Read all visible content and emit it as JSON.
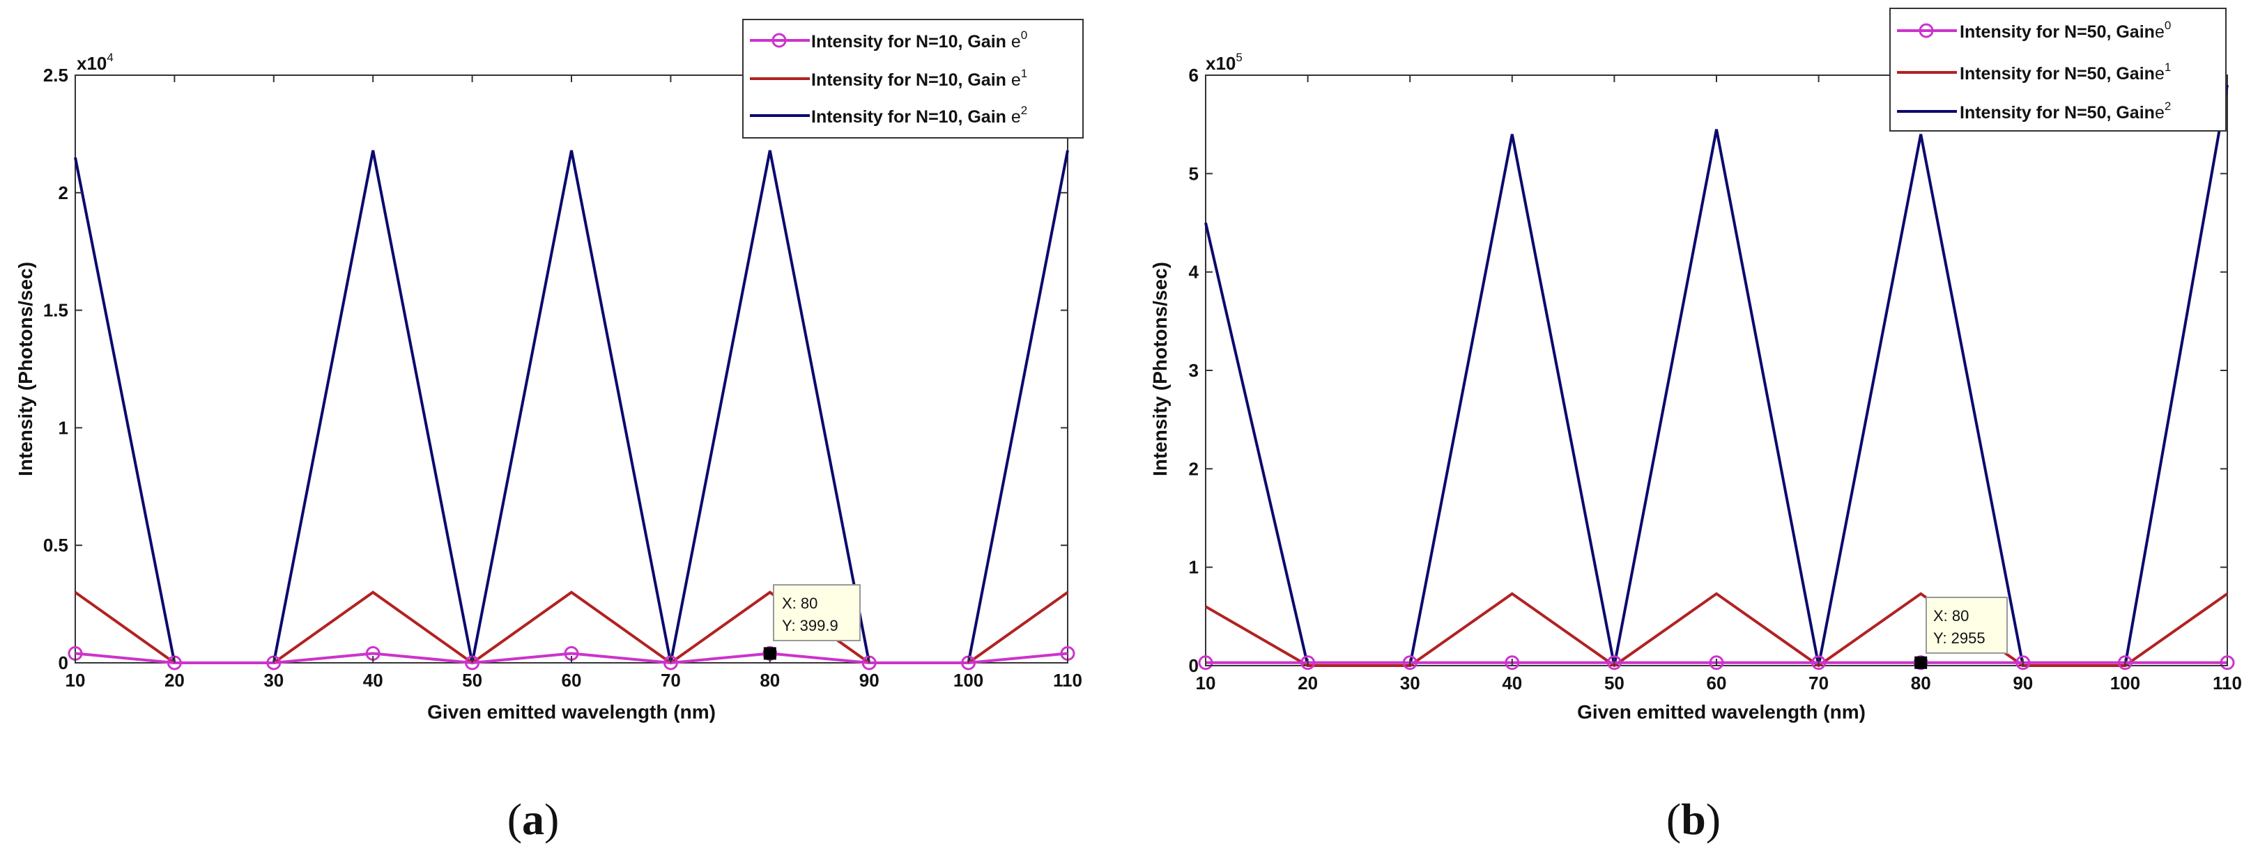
{
  "chart_data": [
    {
      "type": "line",
      "panel_label": "(a)",
      "panel_letter": "a",
      "xlabel": "Given emitted wavelength (nm)",
      "ylabel": "Intensity (Photons/sec)",
      "y_multiplier": "x10",
      "y_exponent": "4",
      "xlim": [
        10,
        110
      ],
      "ylim": [
        0,
        2.5
      ],
      "xticks": [
        "10",
        "20",
        "30",
        "40",
        "50",
        "60",
        "70",
        "80",
        "90",
        "100",
        "110"
      ],
      "yticks": [
        "0",
        "0.5",
        "1",
        "1.5",
        "2",
        "2.5"
      ],
      "x": [
        10,
        20,
        30,
        40,
        50,
        60,
        70,
        80,
        90,
        100,
        110
      ],
      "series": [
        {
          "name_prefix": "Intensity for N=10, Gain ",
          "exponent": "0",
          "color": "#cc33cc",
          "marker": "circle",
          "values": [
            0.04,
            0.0,
            0.0,
            0.04,
            0.0,
            0.04,
            0.0,
            0.04,
            0.0,
            0.0,
            0.04
          ]
        },
        {
          "name_prefix": "Intensity for N=10, Gain ",
          "exponent": "1",
          "color": "#b22222",
          "marker": "none",
          "values": [
            0.3,
            0.0,
            0.0,
            0.3,
            0.0,
            0.3,
            0.0,
            0.3,
            0.0,
            0.0,
            0.3
          ]
        },
        {
          "name_prefix": "Intensity for N=10, Gain ",
          "exponent": "2",
          "color": "#0a0a6e",
          "marker": "none",
          "values": [
            2.15,
            0.0,
            0.0,
            2.18,
            0.0,
            2.18,
            0.0,
            2.18,
            0.0,
            0.0,
            2.18
          ]
        }
      ],
      "datatip": {
        "x_label": "X: 80",
        "y_label": "Y: 399.9",
        "x": 80,
        "y": 0.04
      }
    },
    {
      "type": "line",
      "panel_label": "(b)",
      "panel_letter": "b",
      "xlabel": "Given emitted wavelength (nm)",
      "ylabel": "Intensity (Photons/sec)",
      "y_multiplier": "x10",
      "y_exponent": "5",
      "xlim": [
        10,
        110
      ],
      "ylim": [
        0,
        6
      ],
      "xticks": [
        "10",
        "20",
        "30",
        "40",
        "50",
        "60",
        "70",
        "80",
        "90",
        "100",
        "110"
      ],
      "yticks": [
        "0",
        "1",
        "2",
        "3",
        "4",
        "5",
        "6"
      ],
      "x": [
        10,
        20,
        30,
        40,
        50,
        60,
        70,
        80,
        90,
        100,
        110
      ],
      "series": [
        {
          "name_prefix": "Intensity for N=50, Gain",
          "exponent": "0",
          "color": "#cc33cc",
          "marker": "circle",
          "values": [
            0.03,
            0.03,
            0.03,
            0.03,
            0.03,
            0.03,
            0.03,
            0.03,
            0.03,
            0.03,
            0.03
          ]
        },
        {
          "name_prefix": "Intensity for N=50, Gain",
          "exponent": "1",
          "color": "#b22222",
          "marker": "none",
          "values": [
            0.6,
            0.0,
            0.0,
            0.73,
            0.0,
            0.73,
            0.0,
            0.73,
            0.0,
            0.0,
            0.73
          ]
        },
        {
          "name_prefix": "Intensity for N=50, Gain",
          "exponent": "2",
          "color": "#0a0a6e",
          "marker": "none",
          "values": [
            4.5,
            0.0,
            0.0,
            5.4,
            0.0,
            5.45,
            0.0,
            5.4,
            0.0,
            0.0,
            5.9
          ]
        }
      ],
      "datatip": {
        "x_label": "X: 80",
        "y_label": "Y: 2955",
        "x": 80,
        "y": 0.03
      }
    }
  ]
}
